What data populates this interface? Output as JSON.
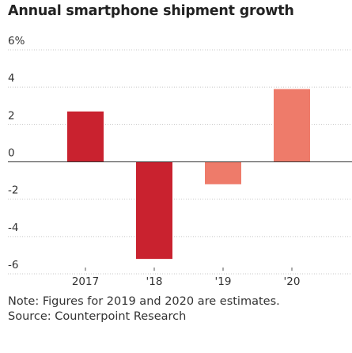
{
  "chart_data": {
    "type": "bar",
    "title": "Annual smartphone shipment growth",
    "unit_label": "6%",
    "categories": [
      "2017",
      "'18",
      "'19",
      "'20"
    ],
    "values": [
      2.7,
      -5.2,
      -1.2,
      3.9
    ],
    "colors": [
      "#c9222f",
      "#c9222f",
      "#ee7b6a",
      "#ee7b6a"
    ],
    "yticks": [
      "6%",
      "4",
      "2",
      "0",
      "-2",
      "-4",
      "-6"
    ],
    "ylim": [
      -6,
      6
    ],
    "xlabel": "",
    "ylabel": "",
    "grid": true
  },
  "footnote": {
    "note": "Note: Figures for 2019 and 2020 are estimates.",
    "source": "Source: Counterpoint Research"
  }
}
